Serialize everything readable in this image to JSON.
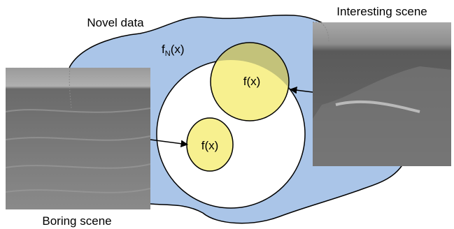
{
  "labels": {
    "novel_data": "Novel data",
    "novelty_function": {
      "name": "f",
      "subscript": "N",
      "argument": "(x)"
    },
    "interesting_function": "f(x)",
    "boring_function": "f(x)",
    "interesting_scene": "Interesting scene",
    "boring_scene": "Boring scene"
  }
}
